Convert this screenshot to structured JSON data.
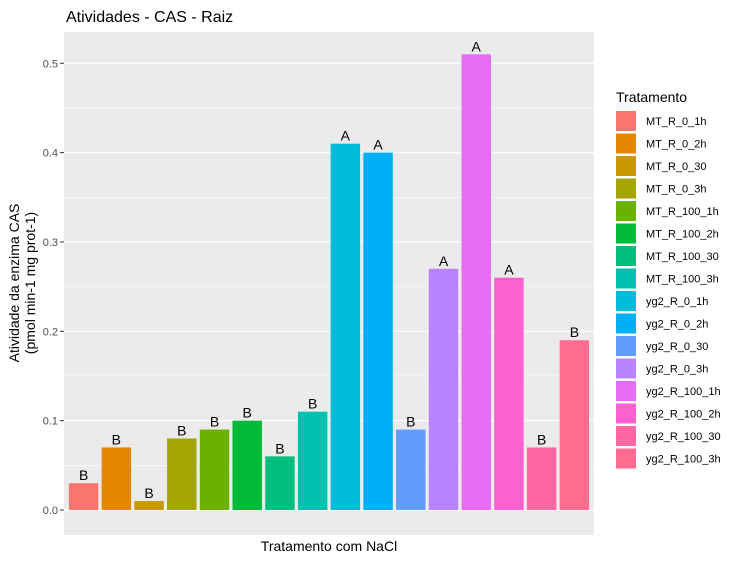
{
  "chart_data": {
    "type": "bar",
    "title": "Atividades - CAS - Raiz",
    "xlabel": "Tratamento com NaCl",
    "ylabel_lines": [
      "Atividade da enzima CAS",
      "(pmol min-1 mg prot-1)"
    ],
    "ylim": [
      -0.028,
      0.535
    ],
    "yticks": [
      0.0,
      0.1,
      0.2,
      0.3,
      0.4,
      0.5
    ],
    "ytick_labels": [
      "0.0",
      "0.1",
      "0.2",
      "0.3",
      "0.4",
      "0.5"
    ],
    "grid": true,
    "legend_position": "right",
    "legend_title": "Tratamento",
    "categories": [
      "MT_R_0_1h",
      "MT_R_0_2h",
      "MT_R_0_30",
      "MT_R_0_3h",
      "MT_R_100_1h",
      "MT_R_100_2h",
      "MT_R_100_30",
      "MT_R_100_3h",
      "yg2_R_0_1h",
      "yg2_R_0_2h",
      "yg2_R_0_30",
      "yg2_R_0_3h",
      "yg2_R_100_1h",
      "yg2_R_100_2h",
      "yg2_R_100_30",
      "yg2_R_100_3h"
    ],
    "values": [
      0.03,
      0.07,
      0.01,
      0.08,
      0.09,
      0.1,
      0.06,
      0.11,
      0.41,
      0.4,
      0.09,
      0.27,
      0.51,
      0.26,
      0.07,
      0.19
    ],
    "labels": [
      "B",
      "B",
      "B",
      "B",
      "B",
      "B",
      "B",
      "B",
      "A",
      "A",
      "B",
      "A",
      "A",
      "A",
      "B",
      "B"
    ],
    "colors": [
      "#F8766D",
      "#E58700",
      "#C99800",
      "#A3A500",
      "#6BB100",
      "#00BA38",
      "#00BF7D",
      "#00C0AF",
      "#00BCD8",
      "#00B0F6",
      "#619CFF",
      "#B983FF",
      "#E76BF3",
      "#FD61D1",
      "#FF67A4",
      "#FF6C90"
    ]
  }
}
